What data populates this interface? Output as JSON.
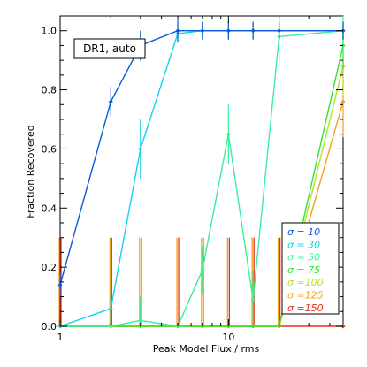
{
  "chart_data": {
    "type": "line",
    "xlabel": "Peak Model Flux / rms",
    "ylabel": "Fraction Recovered",
    "xscale": "log",
    "xlim": [
      1,
      48
    ],
    "ylim": [
      0,
      1.05
    ],
    "x_tick_labels": [
      "1",
      "10"
    ],
    "y_tick_labels": [
      "0.0",
      "0.2",
      "0.4",
      "0.6",
      "0.8",
      "1.0"
    ],
    "annotation": "DR1, auto",
    "legend_position": "bottom-right",
    "x": [
      1,
      2,
      3,
      5,
      7,
      10,
      14,
      20,
      48
    ],
    "series": [
      {
        "name": "σ = 10",
        "color": "#0a5ad8",
        "values": [
          0.14,
          0.76,
          0.95,
          1.0,
          1.0,
          1.0,
          1.0,
          1.0,
          1.0
        ],
        "err": [
          0.04,
          0.05,
          0.05,
          0.04,
          0.03,
          0.03,
          0.03,
          0.03,
          0.03
        ]
      },
      {
        "name": "σ = 30",
        "color": "#13d3f0",
        "values": [
          0.0,
          0.06,
          0.6,
          0.99,
          1.0,
          1.0,
          1.0,
          1.0,
          1.0
        ],
        "err": [
          0.0,
          0.05,
          0.1,
          0.03,
          0.03,
          0.03,
          0.03,
          0.03,
          0.03
        ]
      },
      {
        "name": "σ = 50",
        "color": "#3aee9a",
        "values": [
          0.0,
          0.0,
          0.02,
          0.0,
          0.19,
          0.65,
          0.09,
          0.98,
          1.0
        ],
        "err": [
          0.0,
          0.0,
          0.08,
          0.0,
          0.08,
          0.1,
          0.1,
          0.1,
          0.08
        ]
      },
      {
        "name": "σ = 75",
        "color": "#33e333",
        "values": [
          0.0,
          0.0,
          0.0,
          0.0,
          0.0,
          0.0,
          0.0,
          0.0,
          0.95
        ],
        "err": [
          0.0,
          0.0,
          0.0,
          0.0,
          0.0,
          0.0,
          0.0,
          0.0,
          0.08
        ]
      },
      {
        "name": "σ =100",
        "color": "#b8e224",
        "values": [
          0.0,
          0.0,
          0.0,
          0.0,
          0.0,
          0.0,
          0.0,
          0.0,
          0.88
        ],
        "err": [
          0.0,
          0.0,
          0.0,
          0.0,
          0.0,
          0.0,
          0.0,
          0.0,
          0.1
        ]
      },
      {
        "name": "σ =125",
        "color": "#f2a11e",
        "values": [
          0.0,
          0.0,
          0.0,
          0.0,
          0.0,
          0.0,
          0.0,
          0.0,
          0.76
        ],
        "err": [
          0.0,
          0.0,
          0.0,
          0.0,
          0.0,
          0.0,
          0.0,
          0.0,
          0.12
        ]
      },
      {
        "name": "σ =150",
        "color": "#e62e1a",
        "values": [
          0.0,
          0.0,
          0.0,
          0.0,
          0.0,
          0.0,
          0.0,
          0.0,
          0.0
        ],
        "err": [
          0.0,
          0.0,
          0.0,
          0.0,
          0.0,
          0.0,
          0.0,
          0.0,
          0.0
        ]
      }
    ],
    "zero_bars": {
      "x": [
        1,
        2,
        3,
        5,
        7,
        10,
        14,
        20
      ],
      "height": 0.3,
      "colors": [
        "#f2a11e",
        "#e62e1a"
      ]
    }
  }
}
